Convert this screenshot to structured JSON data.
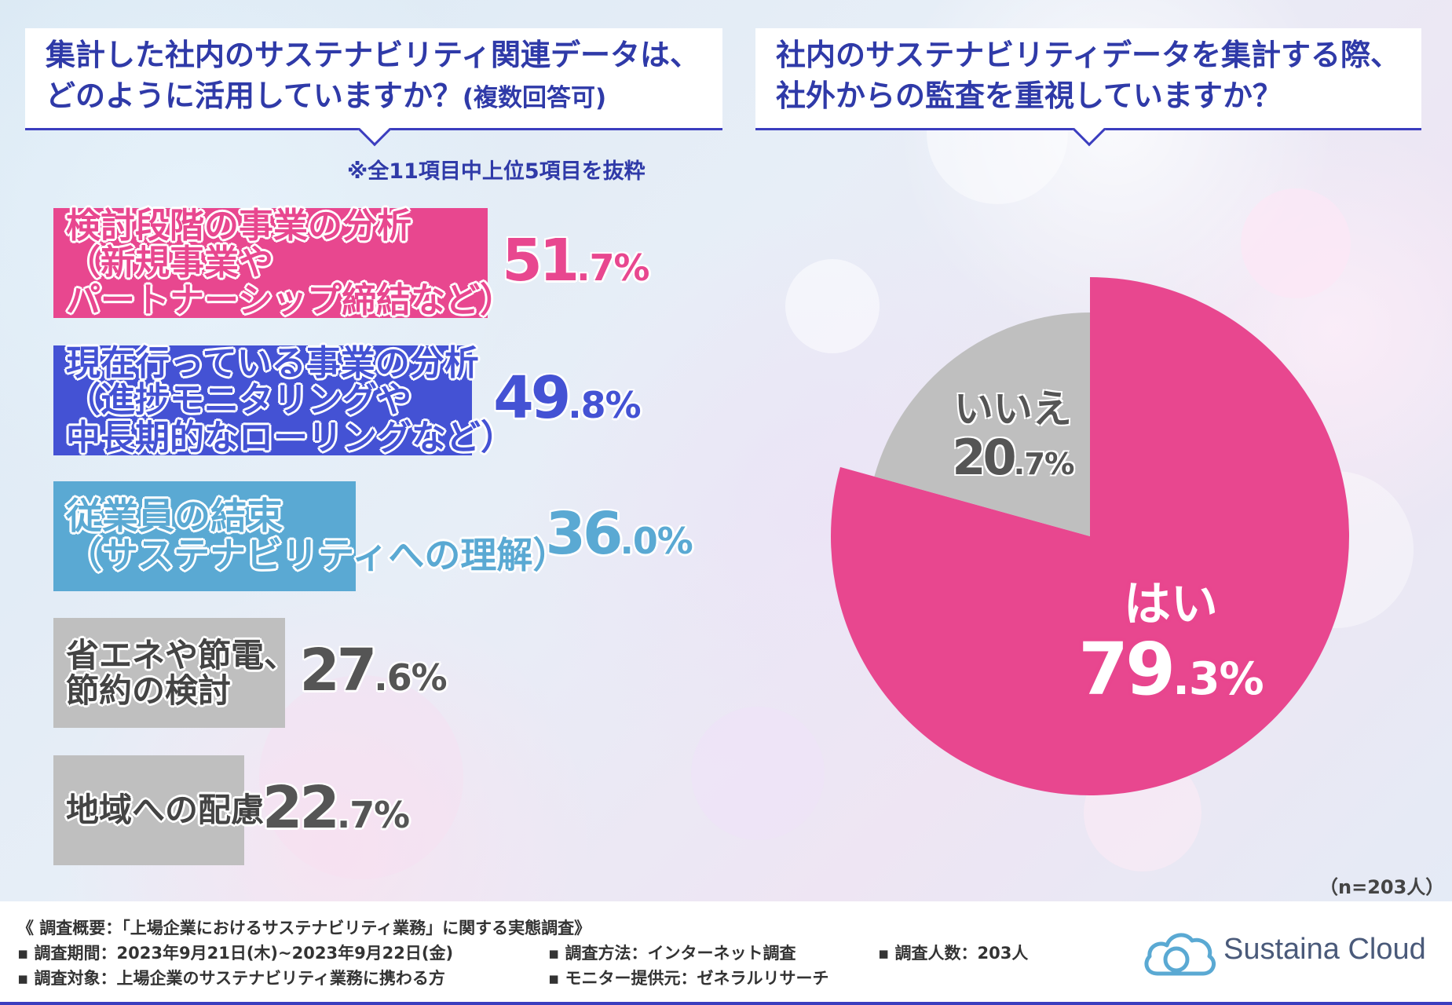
{
  "left_question": {
    "line1": "集計した社内のサステナビリティ関連データは、",
    "line2": "どのように活用していますか？",
    "suffix": "(複数回答可)"
  },
  "note": "※全11項目中上位5項目を抜粋",
  "right_question": {
    "line1": "社内のサステナビリティデータを集計する際、",
    "line2": "社外からの監査を重視していますか？"
  },
  "n_label": "（n=203人）",
  "footer": {
    "title": "《 調査概要：「上場企業におけるサステナビリティ業務」に関する実態調査》",
    "period": "▪ 調査期間：2023年9月21日(木)~2023年9月22日(金)",
    "method": "▪ 調査方法：インターネット調査",
    "count": "▪ 調査人数：203人",
    "target": "▪ 調査対象：上場企業のサステナビリティ業務に携わる方",
    "provider": "▪ モニター提供元：ゼネラルリサーチ",
    "logo": "Sustaina Cloud"
  },
  "colors": {
    "pink": "#e8478f",
    "blue": "#4452d4",
    "lightblue": "#5aa9d3",
    "gray": "#bfbfbf",
    "navy": "#2f3aa8",
    "dark": "#555555"
  },
  "chart_data": [
    {
      "type": "bar",
      "orientation": "horizontal",
      "categories": [
        "検討段階の事業の分析（新規事業やパートナーシップ締結など）",
        "現在行っている事業の分析（進捗モニタリングや中長期的なローリングなど）",
        "従業員の結束（サステナビリティへの理解）",
        "省エネや節電、節約の検討",
        "地域への配慮"
      ],
      "label_lines": [
        [
          "検討段階の事業の分析",
          "（新規事業や",
          "パートナーシップ締結など）"
        ],
        [
          "現在行っている事業の分析",
          "（進捗モニタリングや",
          "中長期的なローリングなど）"
        ],
        [
          "従業員の結束",
          "（サステナビリティへの理解）"
        ],
        [
          "省エネや節電、",
          "節約の検討"
        ],
        [
          "地域への配慮"
        ]
      ],
      "values": [
        51.7,
        49.8,
        36.0,
        27.6,
        22.7
      ],
      "value_labels": [
        {
          "int": "51",
          "dec": ".7%"
        },
        {
          "int": "49",
          "dec": ".8%"
        },
        {
          "int": "36",
          "dec": ".0%"
        },
        {
          "int": "27",
          "dec": ".6%"
        },
        {
          "int": "22",
          "dec": ".7%"
        }
      ],
      "colors": [
        "#e8478f",
        "#4452d4",
        "#5aa9d3",
        "#bfbfbf",
        "#bfbfbf"
      ],
      "text_colors": [
        "#e8478f",
        "#4452d4",
        "#5aa9d3",
        "#555555",
        "#555555"
      ],
      "unit": "%"
    },
    {
      "type": "pie",
      "categories": [
        "はい",
        "いいえ"
      ],
      "values": [
        79.3,
        20.7
      ],
      "value_labels": [
        {
          "int": "79",
          "dec": ".3%"
        },
        {
          "int": "20",
          "dec": ".7%"
        }
      ],
      "colors": [
        "#e8478f",
        "#bfbfbf"
      ],
      "start": "12 o'clock, clockwise"
    }
  ]
}
